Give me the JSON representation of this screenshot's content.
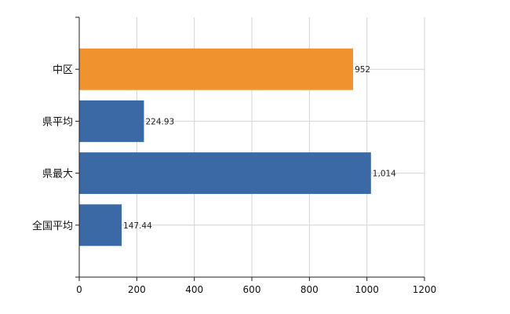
{
  "chart_data": {
    "type": "bar",
    "orientation": "horizontal",
    "categories": [
      "中区",
      "県平均",
      "県最大",
      "全国平均"
    ],
    "values": [
      952,
      224.93,
      1014,
      147.44
    ],
    "value_labels": [
      "952",
      "224.93",
      "1,014",
      "147.44"
    ],
    "bar_colors": [
      "#f0922e",
      "#3a69a6",
      "#3a69a6",
      "#3a69a6"
    ],
    "highlight_color": "#f0922e",
    "default_color": "#3a69a6",
    "xlim": [
      0,
      1200
    ],
    "xticks": [
      0,
      200,
      400,
      600,
      800,
      1000,
      1200
    ],
    "xtick_labels": [
      "0",
      "200",
      "400",
      "600",
      "800",
      "1000",
      "1200"
    ],
    "grid": true,
    "legend": "none",
    "title": "",
    "xlabel": "",
    "ylabel": ""
  }
}
